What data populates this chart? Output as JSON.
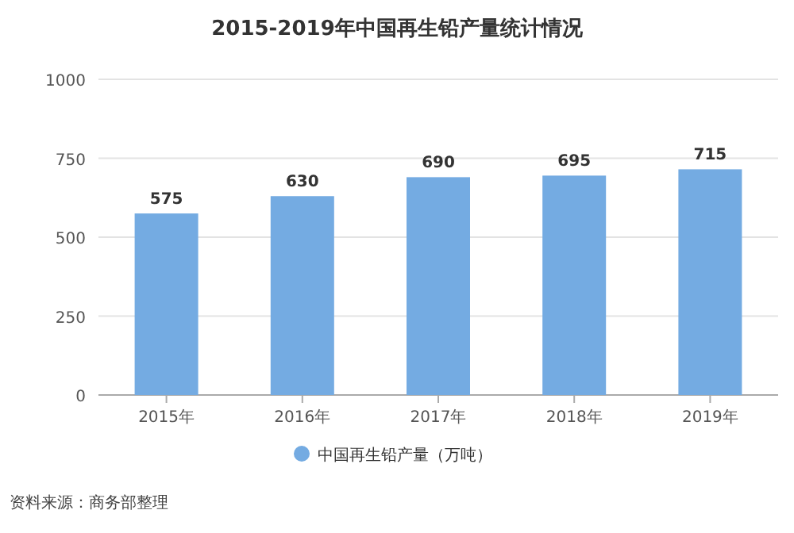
{
  "chart_data": {
    "type": "bar",
    "title": "2015-2019年中国再生铅产量统计情况",
    "categories": [
      "2015年",
      "2016年",
      "2017年",
      "2018年",
      "2019年"
    ],
    "series": [
      {
        "name": "中国再生铅产量（万吨）",
        "color": "#74abe2",
        "values": [
          575,
          630,
          690,
          695,
          715
        ]
      }
    ],
    "ylim": [
      0,
      1000
    ],
    "yticks": [
      0,
      250,
      500,
      750,
      1000
    ],
    "grid": "y",
    "data_labels": true,
    "legend": "bottom",
    "annotations": [
      "资料来源：商务部整理"
    ]
  }
}
